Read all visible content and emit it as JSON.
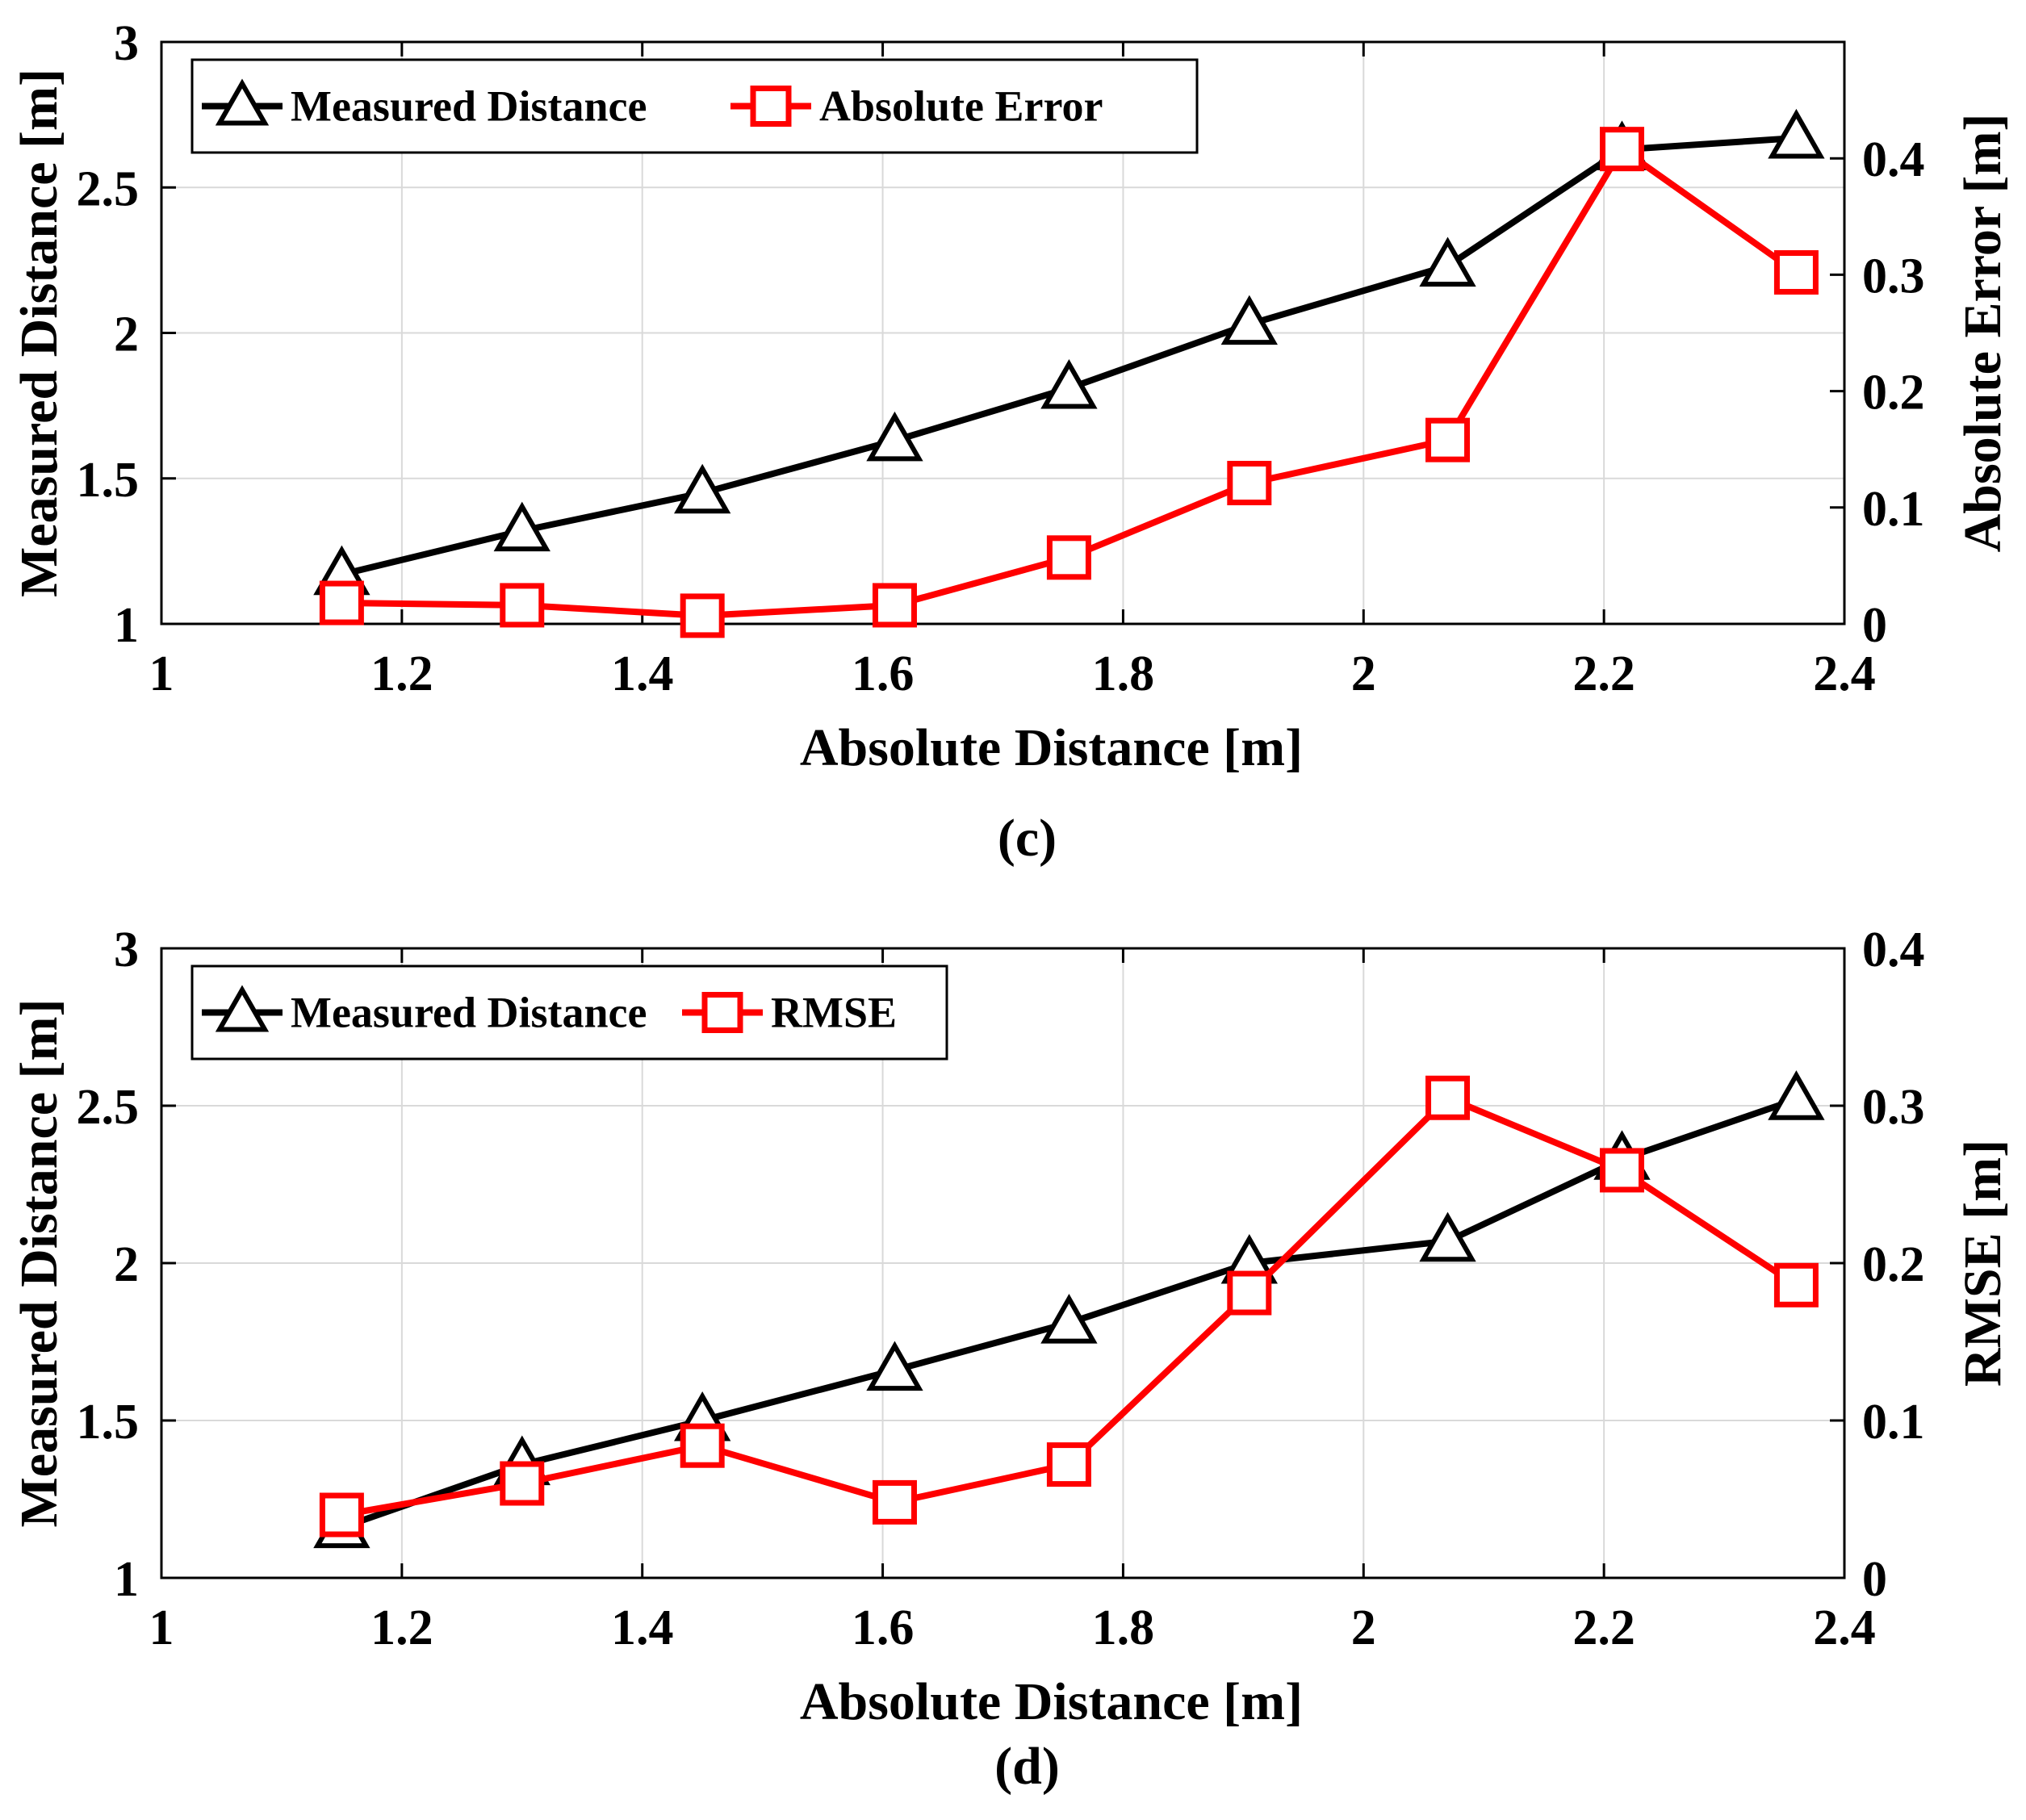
{
  "figure": {
    "panels": [
      {
        "caption": "(c)",
        "legend": [
          "Measured Distance",
          "Absolute Error"
        ]
      },
      {
        "caption": "(d)",
        "legend": [
          "Measured Distance",
          "RMSE"
        ]
      }
    ]
  },
  "chart_data": [
    {
      "type": "line",
      "title": "",
      "xlabel": "Absolute Distance [m]",
      "ylabel": "Measured Distance [m]",
      "y2label": "Absolute Error [m]",
      "xlim": [
        1,
        2.4
      ],
      "ylim": [
        1,
        3
      ],
      "y2lim": [
        0,
        0.5
      ],
      "xticks": [
        "1",
        "1.2",
        "1.4",
        "1.6",
        "1.8",
        "2",
        "2.2",
        "2.4"
      ],
      "yticks": [
        "1",
        "1.5",
        "2",
        "2.5",
        "3"
      ],
      "y2ticks": [
        "0",
        "0.1",
        "0.2",
        "0.3",
        "0.4"
      ],
      "grid": true,
      "legend_position": "top-left",
      "x": [
        1.15,
        1.3,
        1.45,
        1.61,
        1.755,
        1.905,
        2.07,
        2.215,
        2.36
      ],
      "series": [
        {
          "name": "Measured Distance",
          "axis": "left",
          "color": "#000000",
          "marker": "triangle",
          "values": [
            1.17,
            1.32,
            1.45,
            1.63,
            1.81,
            2.03,
            2.23,
            2.63,
            2.67
          ]
        },
        {
          "name": "Absolute Error",
          "axis": "right",
          "color": "#ff0000",
          "marker": "square",
          "values": [
            0.018,
            0.016,
            0.007,
            0.016,
            0.057,
            0.121,
            0.158,
            0.408,
            0.302
          ]
        }
      ]
    },
    {
      "type": "line",
      "title": "",
      "xlabel": "Absolute Distance [m]",
      "ylabel": "Measured Distance [m]",
      "y2label": "RMSE [m]",
      "xlim": [
        1,
        2.4
      ],
      "ylim": [
        1,
        3
      ],
      "y2lim": [
        0,
        0.4
      ],
      "xticks": [
        "1",
        "1.2",
        "1.4",
        "1.6",
        "1.8",
        "2",
        "2.2",
        "2.4"
      ],
      "yticks": [
        "1",
        "1.5",
        "2",
        "2.5",
        "3"
      ],
      "y2ticks": [
        "0",
        "0.1",
        "0.2",
        "0.3",
        "0.4"
      ],
      "grid": true,
      "legend_position": "top-left",
      "x": [
        1.15,
        1.3,
        1.45,
        1.61,
        1.755,
        1.905,
        2.07,
        2.215,
        2.36
      ],
      "series": [
        {
          "name": "Measured Distance",
          "axis": "left",
          "color": "#000000",
          "marker": "triangle",
          "values": [
            1.16,
            1.36,
            1.5,
            1.66,
            1.81,
            2.0,
            2.07,
            2.33,
            2.52
          ]
        },
        {
          "name": "RMSE",
          "axis": "right",
          "color": "#ff0000",
          "marker": "square",
          "values": [
            0.04,
            0.06,
            0.084,
            0.048,
            0.072,
            0.181,
            0.305,
            0.259,
            0.186
          ]
        }
      ]
    }
  ]
}
